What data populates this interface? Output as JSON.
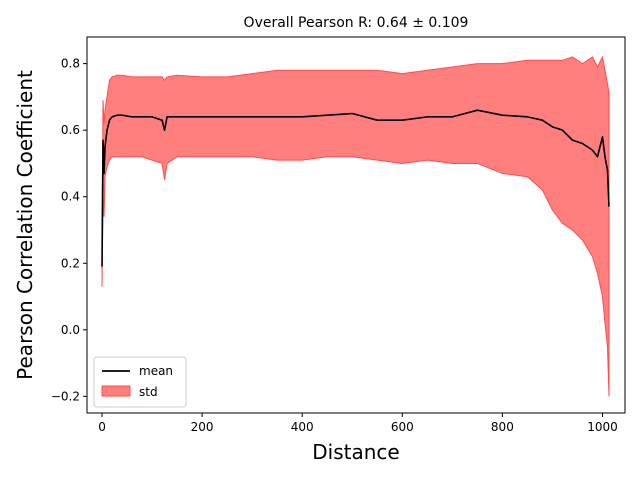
{
  "chart_data": {
    "type": "line",
    "title": "Overall Pearson R: 0.64 ± 0.109",
    "xlabel": "Distance",
    "ylabel": "Pearson Correlation Coefficient",
    "xlim": [
      -30,
      1045
    ],
    "ylim": [
      -0.25,
      0.88
    ],
    "xticks": [
      0,
      200,
      400,
      600,
      800,
      1000
    ],
    "yticks": [
      -0.2,
      0.0,
      0.2,
      0.4,
      0.6,
      0.8
    ],
    "ytick_labels": [
      "−0.2",
      "0.0",
      "0.2",
      "0.4",
      "0.6",
      "0.8"
    ],
    "grid": false,
    "legend": {
      "placement": "lower-left",
      "entries": [
        "mean",
        "std"
      ]
    },
    "colors": {
      "mean": "#000000",
      "std_fill": "#ff7f7f",
      "std_edge": "#ff4c4c"
    },
    "series": [
      {
        "name": "mean",
        "x": [
          0,
          2,
          4,
          6,
          10,
          15,
          20,
          30,
          40,
          60,
          80,
          100,
          120,
          125,
          130,
          150,
          200,
          250,
          300,
          350,
          400,
          450,
          500,
          550,
          600,
          650,
          700,
          750,
          800,
          850,
          880,
          900,
          920,
          940,
          960,
          980,
          990,
          1000,
          1005,
          1010,
          1013
        ],
        "lower": [
          0.13,
          0.4,
          0.34,
          0.46,
          0.49,
          0.51,
          0.52,
          0.52,
          0.52,
          0.52,
          0.52,
          0.51,
          0.5,
          0.45,
          0.5,
          0.52,
          0.52,
          0.52,
          0.52,
          0.51,
          0.51,
          0.52,
          0.52,
          0.51,
          0.5,
          0.51,
          0.5,
          0.5,
          0.47,
          0.46,
          0.42,
          0.36,
          0.32,
          0.3,
          0.27,
          0.22,
          0.17,
          0.1,
          0.02,
          -0.05,
          -0.2
        ],
        "mean": [
          0.19,
          0.57,
          0.47,
          0.55,
          0.6,
          0.63,
          0.64,
          0.645,
          0.645,
          0.64,
          0.64,
          0.64,
          0.63,
          0.6,
          0.64,
          0.64,
          0.64,
          0.64,
          0.64,
          0.64,
          0.64,
          0.645,
          0.65,
          0.63,
          0.63,
          0.64,
          0.64,
          0.66,
          0.645,
          0.64,
          0.63,
          0.61,
          0.6,
          0.57,
          0.56,
          0.54,
          0.52,
          0.58,
          0.52,
          0.48,
          0.37
        ],
        "upper": [
          0.24,
          0.69,
          0.62,
          0.66,
          0.7,
          0.75,
          0.76,
          0.765,
          0.765,
          0.76,
          0.76,
          0.76,
          0.76,
          0.75,
          0.76,
          0.765,
          0.76,
          0.76,
          0.77,
          0.78,
          0.78,
          0.78,
          0.78,
          0.78,
          0.77,
          0.78,
          0.79,
          0.8,
          0.8,
          0.81,
          0.81,
          0.81,
          0.81,
          0.82,
          0.8,
          0.82,
          0.79,
          0.82,
          0.78,
          0.74,
          0.71
        ]
      }
    ]
  }
}
